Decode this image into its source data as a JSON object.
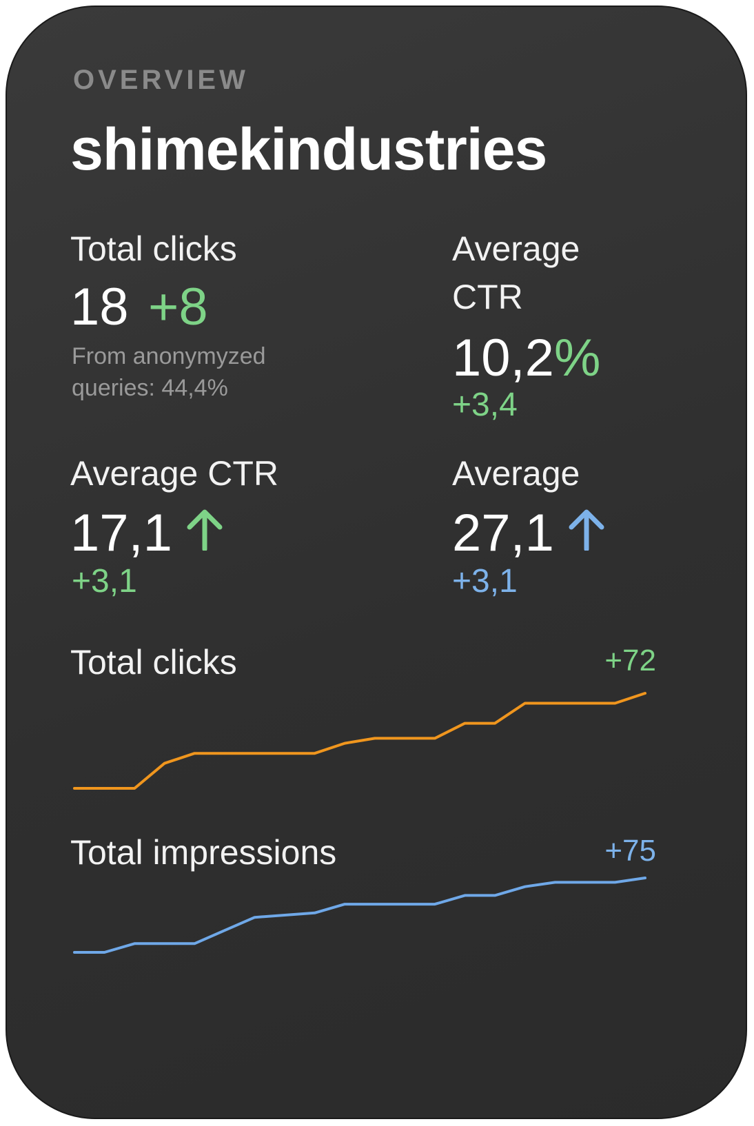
{
  "header": {
    "overline": "OVERVIEW",
    "site_name": "shimekindustries"
  },
  "metrics": {
    "total_clicks": {
      "label": "Total clicks",
      "value": "18",
      "delta": "+8",
      "note_line1": "From anonymyzed",
      "note_line2": "queries: 44,4%"
    },
    "average_ctr_top": {
      "label_line1": "Average",
      "label_line2": "CTR",
      "value": "10,2",
      "unit": "%",
      "delta": "+3,4"
    },
    "average_ctr_bottom": {
      "label": "Average CTR",
      "value": "17,1",
      "delta": "+3,1",
      "trend_icon": "arrow-up-icon"
    },
    "average_bottom_right": {
      "label": "Average",
      "value": "27,1",
      "delta": "+3,1",
      "trend_icon": "arrow-up-icon"
    }
  },
  "colors": {
    "positive": "#7ed387",
    "info": "#7db2ea",
    "clicks_line": "#f0961e",
    "impressions_line": "#6fa8e8"
  },
  "chart_data": [
    {
      "type": "line",
      "title": "Total clicks",
      "badge": "+72",
      "color": "#f0961e",
      "x": [
        0,
        1,
        2,
        3,
        4,
        5,
        6,
        7,
        8,
        9,
        10,
        11,
        12,
        13,
        14,
        15,
        16,
        17,
        18,
        19
      ],
      "values": [
        0,
        0,
        0,
        5,
        7,
        7,
        7,
        7,
        7,
        9,
        10,
        10,
        10,
        13,
        13,
        17,
        17,
        17,
        17,
        19
      ],
      "ylim": [
        0,
        19
      ]
    },
    {
      "type": "line",
      "title": "Total impressions",
      "badge": "+75",
      "color": "#6fa8e8",
      "x": [
        0,
        1,
        2,
        3,
        4,
        5,
        6,
        7,
        8,
        9,
        10,
        11,
        12,
        13,
        14,
        15,
        16,
        17,
        18,
        19
      ],
      "values": [
        0,
        0,
        2,
        2,
        2,
        5,
        8,
        8.5,
        9,
        11,
        11,
        11,
        11,
        13,
        13,
        15,
        16,
        16,
        16,
        17
      ],
      "ylim": [
        0,
        17
      ]
    }
  ]
}
